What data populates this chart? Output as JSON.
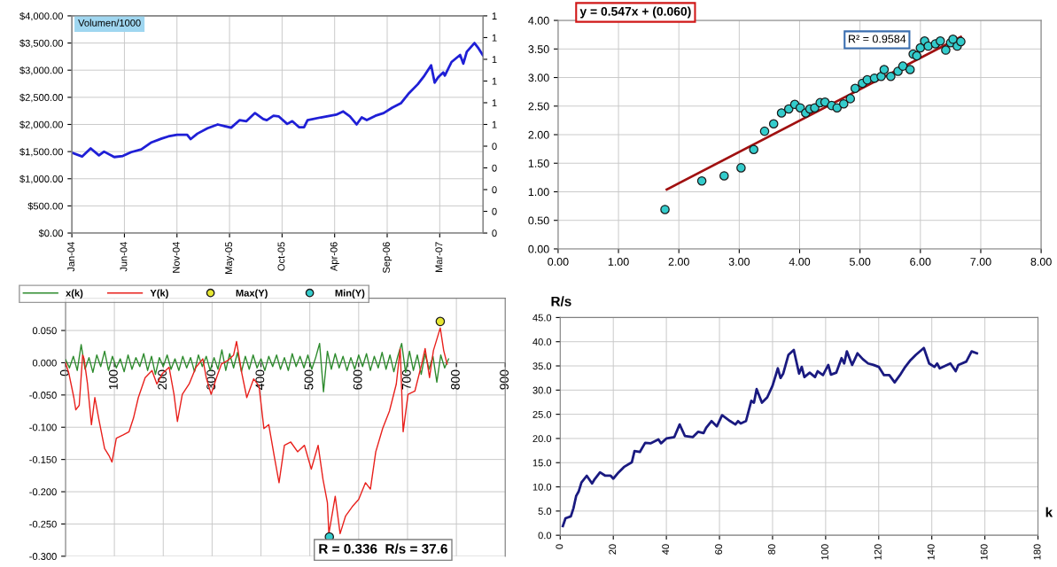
{
  "chart_data": [
    {
      "type": "line",
      "grid": true,
      "legend": false,
      "x": [
        "2004-01-02",
        "2004-02-03",
        "2004-03-01",
        "2004-03-27",
        "2004-04-12",
        "2004-05-14",
        "2004-06-10",
        "2004-07-06",
        "2004-08-07",
        "2004-09-08",
        "2004-10-10",
        "2004-10-31",
        "2004-11-27",
        "2004-12-29",
        "2005-01-09",
        "2005-01-30",
        "2005-03-03",
        "2005-04-04",
        "2005-04-25",
        "2005-05-16",
        "2005-06-12",
        "2005-07-03",
        "2005-07-30",
        "2005-08-25",
        "2005-09-05",
        "2005-09-26",
        "2005-10-12",
        "2005-11-08",
        "2005-11-24",
        "2005-12-15",
        "2005-12-31",
        "2006-01-11",
        "2006-02-22",
        "2006-04-11",
        "2006-05-03",
        "2006-05-24",
        "2006-06-14",
        "2006-06-30",
        "2006-07-16",
        "2006-08-12",
        "2006-09-07",
        "2006-10-04",
        "2006-10-31",
        "2006-11-26",
        "2006-12-23",
        "2007-01-13",
        "2007-02-03",
        "2007-02-14",
        "2007-02-25",
        "2007-03-13",
        "2007-03-18",
        "2007-04-08",
        "2007-05-05",
        "2007-05-15",
        "2007-05-26",
        "2007-06-19",
        "2007-07-02",
        "2007-07-15"
      ],
      "series": [
        {
          "color": "#1f1fd6",
          "values": [
            1480,
            1410,
            1560,
            1430,
            1500,
            1400,
            1420,
            1490,
            1540,
            1670,
            1740,
            1780,
            1810,
            1810,
            1730,
            1830,
            1930,
            2000,
            1970,
            1940,
            2080,
            2060,
            2210,
            2100,
            2080,
            2160,
            2150,
            2010,
            2060,
            1950,
            1950,
            2080,
            2130,
            2180,
            2240,
            2150,
            2000,
            2130,
            2080,
            2160,
            2210,
            2310,
            2390,
            2580,
            2740,
            2900,
            3090,
            2770,
            2870,
            2960,
            2900,
            3150,
            3280,
            3120,
            3340,
            3500,
            3400,
            3280
          ]
        }
      ],
      "xlim": [
        "2004-01-02",
        "2007-07-16"
      ],
      "xticks": [
        {
          "value": "2004-01-02",
          "label": "Jan-04"
        },
        {
          "value": "2004-06-15",
          "label": "Jun-04"
        },
        {
          "value": "2004-11-27",
          "label": "Nov-04"
        },
        {
          "value": "2005-05-11",
          "label": "May-05"
        },
        {
          "value": "2005-10-23",
          "label": "Oct-05"
        },
        {
          "value": "2006-04-06",
          "label": "Apr-06"
        },
        {
          "value": "2006-09-18",
          "label": "Sep-06"
        },
        {
          "value": "2007-03-02",
          "label": "Mar-07"
        }
      ],
      "ylim": [
        0,
        4000
      ],
      "yticks": [
        {
          "value": 0,
          "label": "$0.00"
        },
        {
          "value": 500,
          "label": "$500.00"
        },
        {
          "value": 1000,
          "label": "$1,000.00"
        },
        {
          "value": 1500,
          "label": "$1,500.00"
        },
        {
          "value": 2000,
          "label": "$2,000.00"
        },
        {
          "value": 2500,
          "label": "$2,500.00"
        },
        {
          "value": 3000,
          "label": "$3,000.00"
        },
        {
          "value": 3500,
          "label": "$3,500.00"
        },
        {
          "value": 4000,
          "label": "$4,000.00"
        }
      ],
      "y2lim": [
        0,
        1
      ],
      "y2ticks": [
        {
          "value": 0,
          "label": "0"
        },
        {
          "value": 0.1,
          "label": "0"
        },
        {
          "value": 0.2,
          "label": "0"
        },
        {
          "value": 0.3,
          "label": "0"
        },
        {
          "value": 0.4,
          "label": "0"
        },
        {
          "value": 0.5,
          "label": "1"
        },
        {
          "value": 0.6,
          "label": "1"
        },
        {
          "value": 0.7,
          "label": "1"
        },
        {
          "value": 0.8,
          "label": "1"
        },
        {
          "value": 0.9,
          "label": "1"
        },
        {
          "value": 1,
          "label": "1"
        }
      ],
      "annotations": [
        "Volumen/1000"
      ]
    },
    {
      "type": "scatter",
      "grid": true,
      "series": [
        {
          "type": "scatter",
          "marker": "circle",
          "color": "#33cccc",
          "x": [
            1.77,
            2.38,
            2.75,
            3.03,
            3.24,
            3.42,
            3.57,
            3.7,
            3.82,
            3.92,
            4.01,
            4.1,
            4.17,
            4.25,
            4.34,
            4.42,
            4.53,
            4.62,
            4.73,
            4.84,
            4.92,
            5.04,
            5.12,
            5.24,
            5.35,
            5.4,
            5.51,
            5.63,
            5.71,
            5.83,
            5.88,
            5.94,
            6.0,
            6.07,
            6.13,
            6.25,
            6.33,
            6.42,
            6.5,
            6.54,
            6.61,
            6.67
          ],
          "values": [
            0.69,
            1.19,
            1.28,
            1.42,
            1.74,
            2.06,
            2.19,
            2.38,
            2.45,
            2.53,
            2.47,
            2.38,
            2.45,
            2.47,
            2.56,
            2.57,
            2.51,
            2.47,
            2.54,
            2.63,
            2.81,
            2.9,
            2.96,
            2.99,
            3.02,
            3.14,
            3.02,
            3.11,
            3.2,
            3.14,
            3.41,
            3.38,
            3.52,
            3.64,
            3.55,
            3.59,
            3.64,
            3.48,
            3.61,
            3.67,
            3.55,
            3.63
          ]
        },
        {
          "type": "line",
          "color": "#a01010",
          "x": [
            1.8,
            6.67
          ],
          "values": [
            1.04,
            3.71
          ]
        }
      ],
      "xlim": [
        0,
        8
      ],
      "xticks": [
        {
          "value": 0,
          "label": "0.00"
        },
        {
          "value": 1,
          "label": "1.00"
        },
        {
          "value": 2,
          "label": "2.00"
        },
        {
          "value": 3,
          "label": "3.00"
        },
        {
          "value": 4,
          "label": "4.00"
        },
        {
          "value": 5,
          "label": "5.00"
        },
        {
          "value": 6,
          "label": "6.00"
        },
        {
          "value": 7,
          "label": "7.00"
        },
        {
          "value": 8,
          "label": "8.00"
        }
      ],
      "ylim": [
        0,
        4
      ],
      "yticks": [
        {
          "value": 0,
          "label": "0.00"
        },
        {
          "value": 0.5,
          "label": "0.50"
        },
        {
          "value": 1,
          "label": "1.00"
        },
        {
          "value": 1.5,
          "label": "1.50"
        },
        {
          "value": 2,
          "label": "2.00"
        },
        {
          "value": 2.5,
          "label": "2.50"
        },
        {
          "value": 3,
          "label": "3.00"
        },
        {
          "value": 3.5,
          "label": "3.50"
        },
        {
          "value": 4,
          "label": "4.00"
        }
      ],
      "annotations": [
        "y = 0.547x + (0.060)",
        "R² = 0.9584"
      ]
    },
    {
      "type": "line",
      "grid": true,
      "legend": "top left",
      "series": [
        {
          "name": "x(k)",
          "color": "#2e8b2e",
          "x": [
            0,
            8,
            16,
            24,
            32,
            40,
            48,
            56,
            64,
            72,
            80,
            88,
            96,
            104,
            112,
            120,
            128,
            136,
            144,
            152,
            160,
            168,
            176,
            184,
            192,
            200,
            208,
            216,
            224,
            232,
            240,
            248,
            256,
            264,
            272,
            280,
            288,
            296,
            304,
            312,
            320,
            328,
            336,
            344,
            352,
            360,
            368,
            376,
            384,
            392,
            400,
            408,
            416,
            424,
            432,
            440,
            448,
            456,
            464,
            472,
            480,
            488,
            496,
            504,
            512,
            520,
            528,
            536,
            544,
            552,
            560,
            568,
            576,
            584,
            592,
            600,
            608,
            616,
            624,
            632,
            640,
            648,
            656,
            664,
            672,
            680,
            688,
            696,
            704,
            712,
            720,
            728,
            736,
            744,
            752,
            760,
            768,
            776,
            784
          ],
          "values": [
            0.005,
            -0.008,
            0.01,
            -0.012,
            0.028,
            -0.01,
            0.008,
            -0.015,
            0.012,
            -0.006,
            0.018,
            -0.012,
            0.01,
            -0.008,
            0.006,
            -0.014,
            0.012,
            -0.01,
            0.008,
            -0.006,
            0.014,
            -0.012,
            0.01,
            -0.018,
            0.008,
            -0.006,
            0.012,
            -0.01,
            0.006,
            -0.012,
            0.01,
            -0.008,
            0.008,
            -0.014,
            0.012,
            -0.006,
            0.01,
            -0.012,
            0.008,
            -0.01,
            0.02,
            -0.012,
            0.014,
            -0.008,
            0.016,
            -0.014,
            0.01,
            -0.01,
            0.012,
            -0.008,
            0.006,
            -0.012,
            0.01,
            -0.006,
            0.012,
            -0.01,
            0.008,
            -0.012,
            0.014,
            -0.006,
            0.01,
            -0.008,
            0.012,
            -0.01,
            0.008,
            0.03,
            -0.045,
            0.018,
            -0.01,
            0.014,
            -0.008,
            0.01,
            -0.012,
            0.008,
            -0.01,
            0.012,
            -0.006,
            0.014,
            -0.012,
            0.01,
            -0.008,
            0.016,
            -0.01,
            0.012,
            -0.014,
            0.01,
            0.03,
            -0.015,
            0.018,
            -0.012,
            0.012,
            -0.018,
            0.014,
            -0.01,
            0.01,
            -0.03,
            0.012,
            -0.008,
            0.006
          ]
        },
        {
          "name": "Y(k)",
          "color": "#e8201c",
          "x": [
            0,
            7,
            17,
            21,
            28,
            35,
            38,
            45,
            53,
            60,
            69,
            80,
            89,
            95,
            104,
            118,
            130,
            139,
            149,
            163,
            177,
            187,
            198,
            212,
            222,
            229,
            239,
            253,
            267,
            281,
            288,
            298,
            309,
            319,
            333,
            344,
            350,
            361,
            371,
            385,
            396,
            406,
            416,
            427,
            437,
            448,
            461,
            475,
            489,
            503,
            517,
            527,
            536,
            539,
            552,
            562,
            573,
            587,
            600,
            614,
            624,
            635,
            649,
            663,
            677,
            685,
            691,
            701,
            715,
            729,
            736,
            745,
            753,
            767,
            774,
            781
          ],
          "values": [
            0,
            -0.017,
            -0.054,
            -0.073,
            -0.066,
            0.012,
            0.006,
            -0.033,
            -0.096,
            -0.054,
            -0.091,
            -0.133,
            -0.144,
            -0.154,
            -0.117,
            -0.112,
            -0.107,
            -0.086,
            -0.054,
            -0.023,
            -0.012,
            -0.033,
            -0.017,
            -0.007,
            -0.049,
            -0.091,
            -0.049,
            -0.033,
            -0.007,
            0.006,
            -0.023,
            -0.049,
            -0.023,
            -0.002,
            0.004,
            0.012,
            0.033,
            -0.017,
            -0.054,
            -0.025,
            -0.036,
            -0.102,
            -0.096,
            -0.144,
            -0.186,
            -0.128,
            -0.123,
            -0.138,
            -0.128,
            -0.165,
            -0.128,
            -0.181,
            -0.217,
            -0.265,
            -0.207,
            -0.265,
            -0.238,
            -0.223,
            -0.212,
            -0.186,
            -0.196,
            -0.138,
            -0.102,
            -0.075,
            -0.033,
            0.022,
            -0.107,
            -0.049,
            -0.044,
            -0.002,
            0.022,
            -0.023,
            0.019,
            0.054,
            0.019,
            -0.002
          ]
        },
        {
          "name": "Max(Y)",
          "type": "scatter",
          "marker": "circle",
          "color": "#e6e632",
          "x": [
            767
          ],
          "values": [
            0.064
          ]
        },
        {
          "name": "Min(Y)",
          "type": "scatter",
          "marker": "circle",
          "color": "#33cccc",
          "x": [
            540
          ],
          "values": [
            -0.27
          ]
        }
      ],
      "xlim": [
        0,
        900
      ],
      "xticks": [
        0,
        100,
        200,
        300,
        400,
        500,
        600,
        700,
        800,
        900
      ],
      "ylim": [
        -0.3,
        0.1
      ],
      "yticks": [
        {
          "value": -0.3,
          "label": "-0.300"
        },
        {
          "value": -0.25,
          "label": "-0.250"
        },
        {
          "value": -0.2,
          "label": "-0.200"
        },
        {
          "value": -0.15,
          "label": "-0.150"
        },
        {
          "value": -0.1,
          "label": "-0.100"
        },
        {
          "value": -0.05,
          "label": "-0.050"
        },
        {
          "value": 0,
          "label": "0.000"
        },
        {
          "value": 0.05,
          "label": "0.050"
        }
      ],
      "annotations": [
        "R = 0.336  R/s = 37.6"
      ]
    },
    {
      "type": "line",
      "grid": true,
      "ylabel": "R/s",
      "xlabel": "k",
      "x": [
        1,
        2,
        4,
        5,
        6,
        7,
        8,
        10,
        12,
        13,
        15,
        17,
        19,
        20,
        22,
        24,
        27,
        28,
        30,
        32,
        34,
        37,
        38,
        40,
        43,
        45,
        47,
        50,
        52,
        54,
        55,
        57,
        59,
        61,
        64,
        66,
        67,
        68,
        70,
        72,
        73,
        74,
        76,
        78,
        80,
        82,
        83,
        84,
        86,
        88,
        90,
        91,
        92,
        94,
        96,
        97,
        99,
        101,
        102,
        104,
        106,
        107,
        108,
        110,
        112,
        114,
        116,
        118,
        120,
        122,
        124,
        126,
        128,
        130,
        132,
        134,
        137,
        139,
        141,
        142,
        143,
        147,
        149,
        150,
        153,
        155,
        157
      ],
      "series": [
        {
          "color": "#1a1a80",
          "values": [
            1.9,
            3.5,
            3.9,
            5.6,
            8.1,
            9.1,
            10.9,
            12.3,
            10.7,
            11.6,
            13.0,
            12.3,
            12.3,
            11.7,
            13.0,
            14.1,
            15.1,
            17.4,
            17.2,
            19.1,
            19.0,
            19.8,
            19.0,
            20.0,
            20.3,
            22.9,
            20.5,
            20.3,
            21.4,
            21.1,
            22.2,
            23.6,
            22.5,
            24.8,
            23.6,
            22.9,
            23.6,
            23.1,
            23.6,
            27.8,
            27.4,
            30.2,
            27.4,
            28.5,
            30.9,
            34.5,
            32.5,
            33.4,
            37.3,
            38.3,
            33.4,
            34.8,
            32.7,
            33.6,
            32.7,
            33.9,
            33.1,
            35.2,
            33.2,
            33.6,
            36.6,
            35.5,
            38.0,
            35.2,
            37.6,
            36.4,
            35.5,
            35.2,
            34.8,
            33.1,
            33.1,
            31.6,
            33.1,
            34.8,
            36.2,
            37.3,
            38.7,
            35.5,
            34.8,
            35.5,
            34.5,
            35.5,
            33.9,
            35.2,
            35.9,
            38.0,
            37.6
          ]
        }
      ],
      "xlim": [
        0,
        180
      ],
      "xticks": [
        0,
        20,
        40,
        60,
        80,
        100,
        120,
        140,
        160,
        180
      ],
      "ylim": [
        0,
        45
      ],
      "yticks": [
        {
          "value": 0,
          "label": "0.0"
        },
        {
          "value": 5,
          "label": "5.0"
        },
        {
          "value": 10,
          "label": "10.0"
        },
        {
          "value": 15,
          "label": "15.0"
        },
        {
          "value": 20,
          "label": "20.0"
        },
        {
          "value": 25,
          "label": "25.0"
        },
        {
          "value": 30,
          "label": "30.0"
        },
        {
          "value": 35,
          "label": "35.0"
        },
        {
          "value": 40,
          "label": "40.0"
        },
        {
          "value": 45,
          "label": "45.0"
        }
      ]
    }
  ]
}
